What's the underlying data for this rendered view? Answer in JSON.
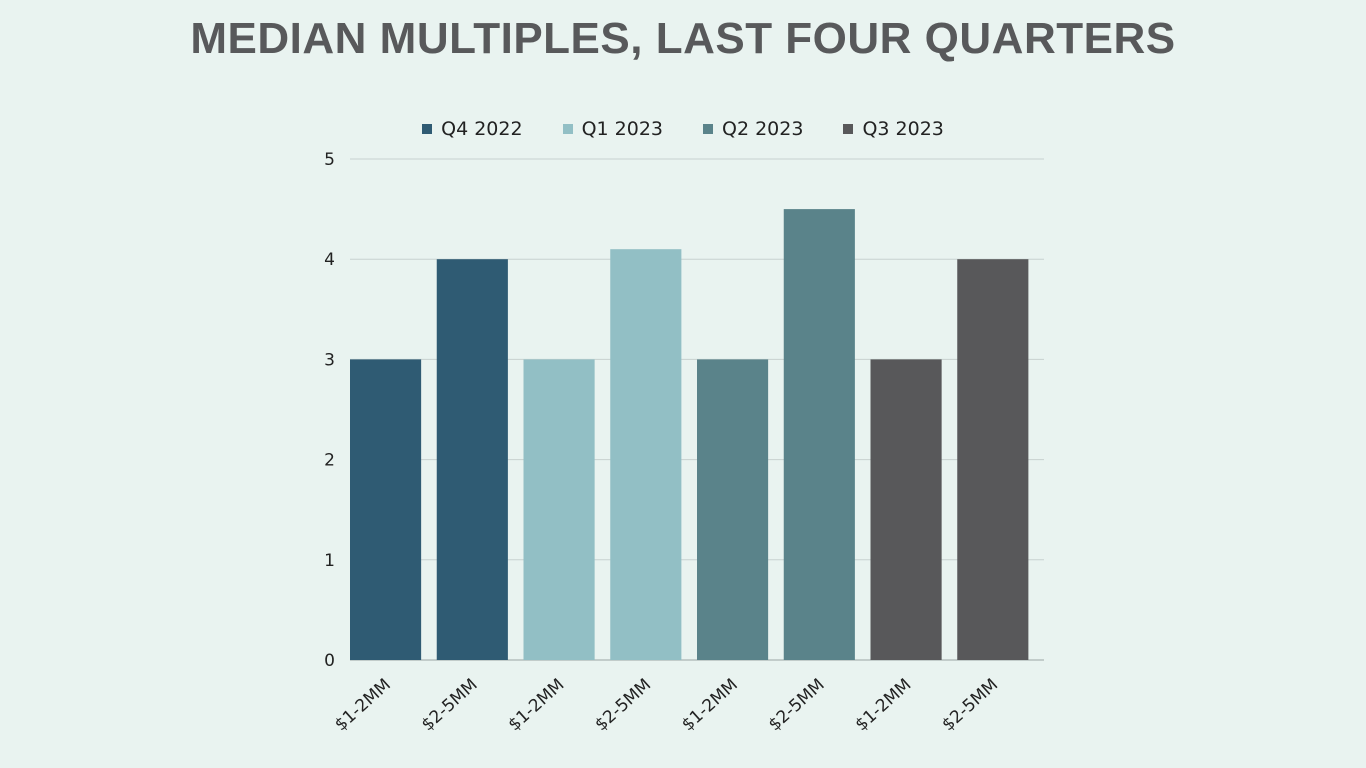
{
  "chart_data": {
    "type": "bar",
    "title": "MEDIAN MULTIPLES, LAST FOUR QUARTERS",
    "xlabel": "",
    "ylabel": "",
    "ylim": [
      0,
      5
    ],
    "yticks": [
      0,
      1,
      2,
      3,
      4,
      5
    ],
    "grid": true,
    "legend_position": "top",
    "categories": [
      "$1-2MM",
      "$2-5MM"
    ],
    "series": [
      {
        "name": "Q4 2022",
        "color": "#2f5b73",
        "values": [
          3,
          4
        ]
      },
      {
        "name": "Q1 2023",
        "color": "#92bfc5",
        "values": [
          3,
          4.1
        ]
      },
      {
        "name": "Q2 2023",
        "color": "#5a838a",
        "values": [
          3,
          4.5
        ]
      },
      {
        "name": "Q3 2023",
        "color": "#58585a",
        "values": [
          3,
          4
        ]
      }
    ]
  }
}
